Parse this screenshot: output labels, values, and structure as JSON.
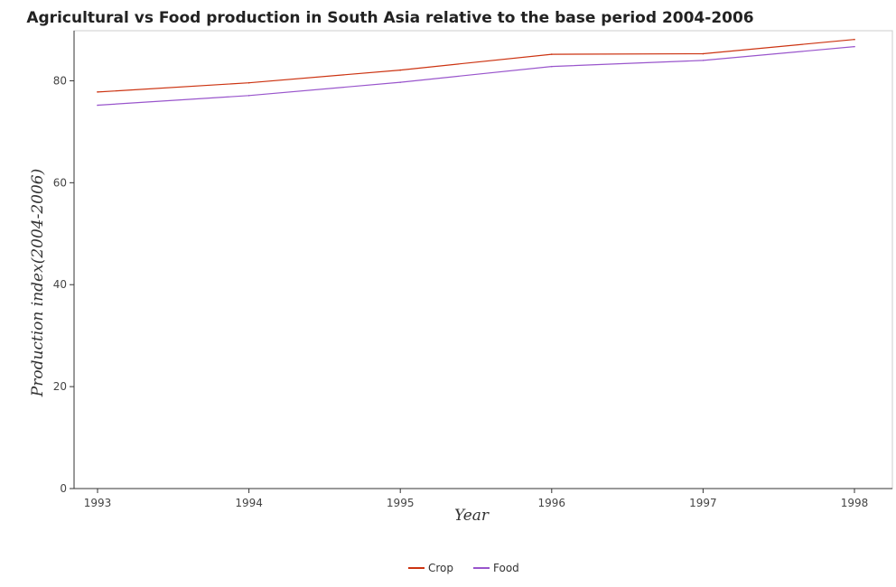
{
  "chart_data": {
    "type": "line",
    "title": "Agricultural vs Food production in South Asia relative to the base period 2004-2006",
    "xlabel": "Year",
    "ylabel": "Production index(2004-2006)",
    "categories": [
      "1993",
      "1994",
      "1995",
      "1996",
      "1997",
      "1998"
    ],
    "yticks": [
      "0",
      "20",
      "40",
      "60",
      "80"
    ],
    "ylim": [
      0,
      90
    ],
    "grid": false,
    "legend_position": "bottom-center",
    "series": [
      {
        "name": "Crop",
        "color": "#cc3311",
        "values": [
          77.8,
          79.6,
          82.1,
          85.2,
          85.3,
          88.1
        ]
      },
      {
        "name": "Food",
        "color": "#9955cc",
        "values": [
          75.2,
          77.1,
          79.7,
          82.8,
          84.0,
          86.7
        ]
      }
    ]
  }
}
